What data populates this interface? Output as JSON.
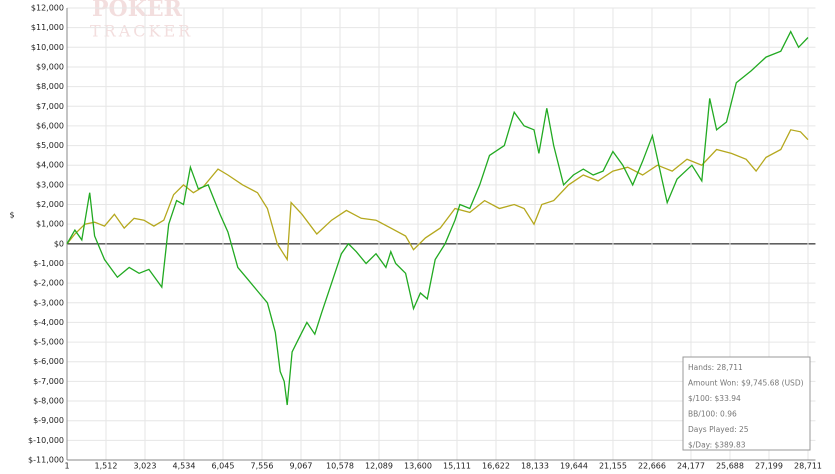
{
  "chart_data": {
    "type": "line",
    "watermark": [
      "POKER",
      "TRACKER"
    ],
    "y_label": "$",
    "xlim": [
      1,
      29000
    ],
    "ylim": [
      -11000,
      12000
    ],
    "grid": true,
    "yticks": [
      {
        "value": 12000,
        "label": "$12,000"
      },
      {
        "value": 11000,
        "label": "$11,000"
      },
      {
        "value": 10000,
        "label": "$10,000"
      },
      {
        "value": 9000,
        "label": "$9,000"
      },
      {
        "value": 8000,
        "label": "$8,000"
      },
      {
        "value": 7000,
        "label": "$7,000"
      },
      {
        "value": 6000,
        "label": "$6,000"
      },
      {
        "value": 5000,
        "label": "$5,000"
      },
      {
        "value": 4000,
        "label": "$4,000"
      },
      {
        "value": 3000,
        "label": "$3,000"
      },
      {
        "value": 2000,
        "label": "$2,000"
      },
      {
        "value": 1000,
        "label": "$1,000"
      },
      {
        "value": 0,
        "label": "$0"
      },
      {
        "value": -1000,
        "label": "$-1,000"
      },
      {
        "value": -2000,
        "label": "$-2,000"
      },
      {
        "value": -3000,
        "label": "$-3,000"
      },
      {
        "value": -4000,
        "label": "$-4,000"
      },
      {
        "value": -5000,
        "label": "$-5,000"
      },
      {
        "value": -6000,
        "label": "$-6,000"
      },
      {
        "value": -7000,
        "label": "$-7,000"
      },
      {
        "value": -8000,
        "label": "$-8,000"
      },
      {
        "value": -9000,
        "label": "$-9,000"
      },
      {
        "value": -10000,
        "label": "$-10,000"
      },
      {
        "value": -11000,
        "label": "$-11,000"
      }
    ],
    "xticks": [
      1,
      {
        "value": 1512,
        "label": "1,512"
      },
      {
        "value": 3023,
        "label": "3,023"
      },
      {
        "value": 4534,
        "label": "4,534"
      },
      {
        "value": 6045,
        "label": "6,045"
      },
      {
        "value": 7556,
        "label": "7,556"
      },
      {
        "value": 9067,
        "label": "9,067"
      },
      {
        "value": 10578,
        "label": "10,578"
      },
      {
        "value": 12089,
        "label": "12,089"
      },
      {
        "value": 13600,
        "label": "13,600"
      },
      {
        "value": 15111,
        "label": "15,111"
      },
      {
        "value": 16622,
        "label": "16,622"
      },
      {
        "value": 18133,
        "label": "18,133"
      },
      {
        "value": 19644,
        "label": "19,644"
      },
      {
        "value": 21155,
        "label": "21,155"
      },
      {
        "value": 22666,
        "label": "22,666"
      },
      {
        "value": 24177,
        "label": "24,177"
      },
      {
        "value": 25688,
        "label": "25,688"
      },
      {
        "value": 27199,
        "label": "27,199"
      },
      {
        "value": 28711,
        "label": "28,711"
      }
    ],
    "series": [
      {
        "color": "#22aa22",
        "x": [
          1,
          307,
          575,
          881,
          1072,
          1454,
          1952,
          2411,
          2793,
          3176,
          3673,
          3941,
          4247,
          4515,
          4782,
          5088,
          5471,
          5930,
          6236,
          6618,
          7001,
          7383,
          7766,
          8072,
          8263,
          8416,
          8531,
          8722,
          8913,
          9296,
          9602,
          9869,
          10252,
          10634,
          10902,
          11208,
          11591,
          11973,
          12356,
          12547,
          12738,
          13121,
          13427,
          13694,
          13962,
          14268,
          14651,
          15033,
          15225,
          15607,
          15990,
          16372,
          16946,
          17328,
          17711,
          18093,
          18285,
          18591,
          18858,
          19241,
          19623,
          20006,
          20388,
          20771,
          21153,
          21536,
          21918,
          22301,
          22683,
          23066,
          23257,
          23640,
          24213,
          24596,
          24902,
          25169,
          25552,
          25934,
          26508,
          27082,
          27656,
          28039,
          28345,
          28711
        ],
        "values": [
          0,
          700,
          200,
          2600,
          400,
          -800,
          -1700,
          -1200,
          -1500,
          -1300,
          -2200,
          1000,
          2200,
          2000,
          3900,
          2800,
          3000,
          1500,
          600,
          -1200,
          -1800,
          -2400,
          -3000,
          -4500,
          -6500,
          -7000,
          -8200,
          -5500,
          -5000,
          -4000,
          -4600,
          -3500,
          -2000,
          -500,
          0,
          -400,
          -1000,
          -500,
          -1200,
          -400,
          -1000,
          -1500,
          -3300,
          -2500,
          -2800,
          -800,
          0,
          1200,
          2000,
          1800,
          3000,
          4500,
          5000,
          6700,
          6000,
          5800,
          4600,
          6900,
          5000,
          3000,
          3500,
          3800,
          3500,
          3700,
          4700,
          4000,
          3000,
          4200,
          5500,
          3200,
          2100,
          3300,
          4000,
          3200,
          7400,
          5800,
          6200,
          8200,
          8800,
          9500,
          9800,
          10800,
          10000,
          10500
        ]
      },
      {
        "color": "#b5a81e",
        "x": [
          1,
          307,
          689,
          1072,
          1454,
          1837,
          2219,
          2602,
          2985,
          3367,
          3750,
          4132,
          4515,
          4897,
          5280,
          5853,
          6236,
          6810,
          7383,
          7766,
          8148,
          8340,
          8531,
          8684,
          9105,
          9678,
          10252,
          10825,
          11399,
          11973,
          12547,
          13121,
          13427,
          13886,
          14460,
          15033,
          15607,
          16181,
          16754,
          17328,
          17711,
          18093,
          18399,
          18858,
          19432,
          20006,
          20580,
          21153,
          21727,
          22301,
          22875,
          23449,
          24022,
          24596,
          25169,
          25743,
          26317,
          26699,
          27082,
          27656,
          28039,
          28422,
          28711
        ],
        "values": [
          0,
          500,
          1000,
          1100,
          900,
          1500,
          800,
          1300,
          1200,
          900,
          1200,
          2500,
          3000,
          2600,
          2900,
          3800,
          3500,
          3000,
          2600,
          1800,
          0,
          -400,
          -800,
          2100,
          1500,
          500,
          1200,
          1700,
          1300,
          1200,
          800,
          400,
          -300,
          300,
          800,
          1800,
          1600,
          2200,
          1800,
          2000,
          1800,
          1000,
          2000,
          2200,
          3000,
          3500,
          3200,
          3700,
          3900,
          3500,
          4000,
          3700,
          4300,
          4000,
          4800,
          4600,
          4300,
          3700,
          4400,
          4800,
          5800,
          5700,
          5300
        ]
      }
    ],
    "stats": [
      "Hands: 28,711",
      "Amount Won: $9,745.68 (USD)",
      "$/100: $33.94",
      "BB/100: 0.96",
      "Days Played: 25",
      "$/Day: $389.83"
    ]
  }
}
